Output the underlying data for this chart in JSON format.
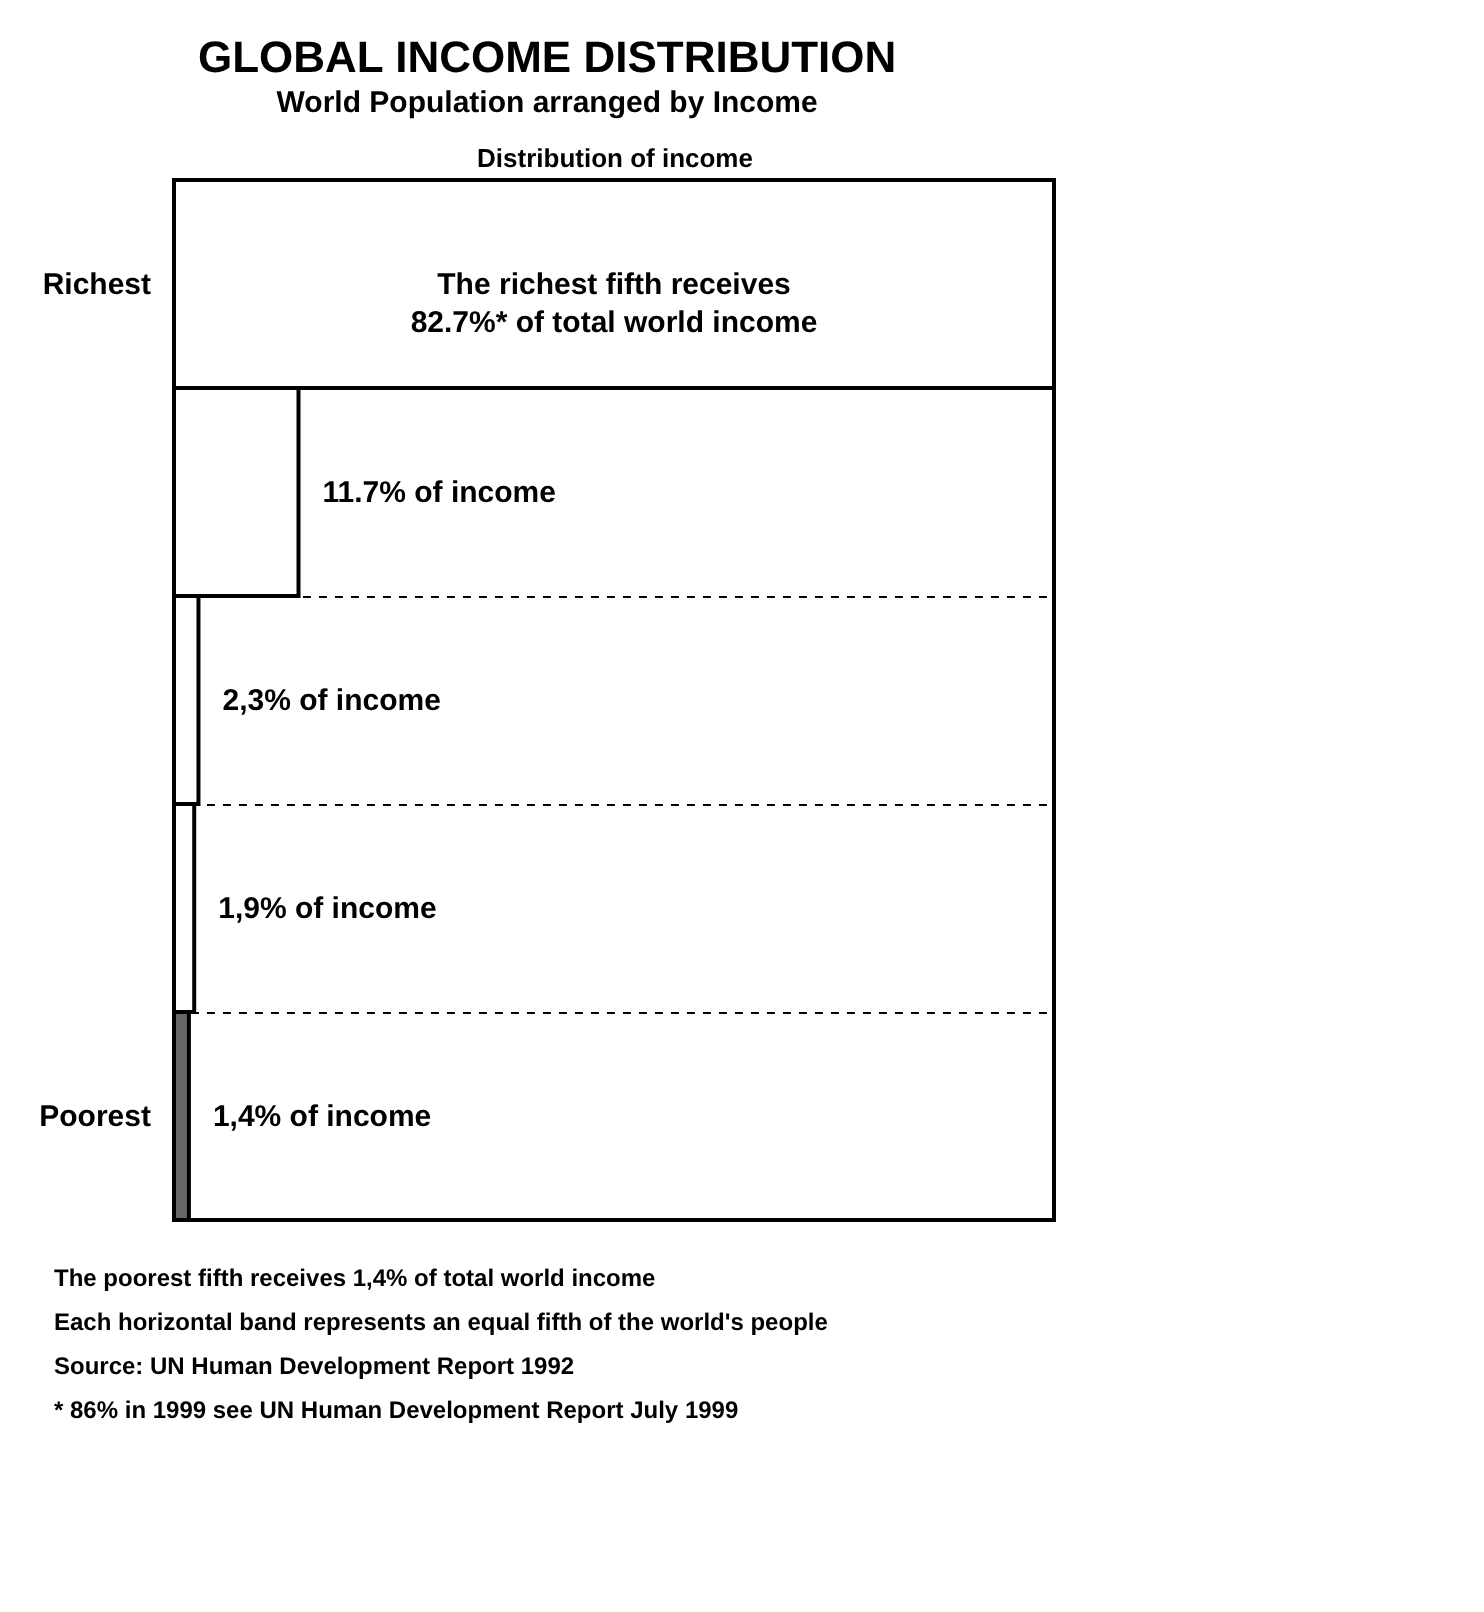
{
  "chart_data": {
    "type": "bar",
    "orientation": "horizontal",
    "title": "GLOBAL INCOME DISTRIBUTION",
    "subtitle": "World Population arranged by Income",
    "xlabel": "Distribution of income",
    "categories": [
      "Richest",
      null,
      null,
      null,
      "Poorest"
    ],
    "values": [
      82.7,
      11.7,
      2.3,
      1.9,
      1.4
    ],
    "colors": [
      "#ffffff",
      "#ffffff",
      "#ffffff",
      "#ffffff",
      "#666666"
    ],
    "value_labels": [
      "The richest fifth receives 82.7%* of total world income",
      "11.7% of income",
      "2,3% of income",
      "1,9% of income",
      "1,4% of income"
    ],
    "annotations": [
      "The poorest fifth receives 1,4% of total world income",
      "Each horizontal band represents an equal fifth of the world's people",
      "Source: UN Human Development Report 1992",
      "* 86% in 1999   see UN Human Development Report July 1999"
    ],
    "grid": "y",
    "tick_labels": "y"
  }
}
